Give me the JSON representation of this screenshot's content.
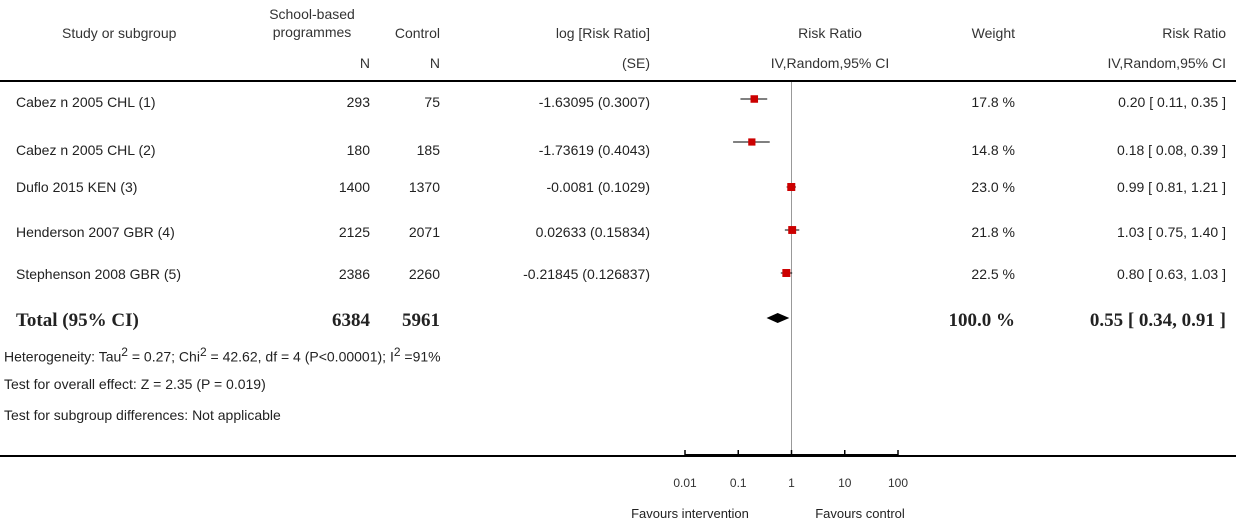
{
  "header": {
    "study": "Study or subgroup",
    "exp_line1": "School-based",
    "exp_line2": "programmes",
    "exp_n": "N",
    "control": "Control",
    "control_n": "N",
    "logrr": "log [Risk Ratio]",
    "logrr_se": "(SE)",
    "rr_plot": "Risk Ratio",
    "rr_plot_method": "IV,Random,95% CI",
    "weight": "Weight",
    "rr_text": "Risk Ratio",
    "rr_text_method": "IV,Random,95% CI"
  },
  "rows": [
    {
      "study": "Cabez  n 2005 CHL (1)",
      "exp_n": "293",
      "ctrl_n": "75",
      "logrr": "-1.63095 (0.3007)",
      "weight": "17.8 %",
      "rr": "0.20 [ 0.11, 0.35 ]"
    },
    {
      "study": "Cabez  n 2005 CHL (2)",
      "exp_n": "180",
      "ctrl_n": "185",
      "logrr": "-1.73619 (0.4043)",
      "weight": "14.8 %",
      "rr": "0.18 [ 0.08, 0.39 ]"
    },
    {
      "study": "Duflo 2015 KEN (3)",
      "exp_n": "1400",
      "ctrl_n": "1370",
      "logrr": "-0.0081 (0.1029)",
      "weight": "23.0 %",
      "rr": "0.99 [ 0.81, 1.21 ]"
    },
    {
      "study": "Henderson 2007 GBR (4)",
      "exp_n": "2125",
      "ctrl_n": "2071",
      "logrr": "0.02633 (0.15834)",
      "weight": "21.8 %",
      "rr": "1.03 [ 0.75, 1.40 ]"
    },
    {
      "study": "Stephenson 2008 GBR (5)",
      "exp_n": "2386",
      "ctrl_n": "2260",
      "logrr": "-0.21845 (0.126837)",
      "weight": "22.5 %",
      "rr": "0.80 [ 0.63, 1.03 ]"
    }
  ],
  "total": {
    "label": "Total (95% CI)",
    "exp_n": "6384",
    "ctrl_n": "5961",
    "weight": "100.0 %",
    "rr": "0.55 [ 0.34, 0.91 ]"
  },
  "notes": {
    "heterogeneity_a": "Heterogeneity: Tau",
    "heterogeneity_b": " = 0.27; Chi",
    "heterogeneity_c": " = 42.62, df = 4 (P<0.00001); I",
    "heterogeneity_d": " =91%",
    "sup": "2",
    "overall": "Test for overall effect: Z = 2.35 (P = 0.019)",
    "subgroup": "Test for subgroup differences: Not applicable"
  },
  "axis": {
    "ticks": [
      "0.01",
      "0.1",
      "1",
      "10",
      "100"
    ],
    "favours_left": "Favours intervention",
    "favours_right": "Favours control"
  },
  "chart_data": {
    "type": "forest",
    "scale": "log",
    "xlim": [
      0.01,
      100
    ],
    "null_line": 1,
    "colors": {
      "marker": "#cc0000",
      "line": "#000000",
      "null_line": "#999999"
    },
    "studies": [
      {
        "name": "Cabez  n 2005 CHL (1)",
        "rr": 0.2,
        "lo": 0.11,
        "hi": 0.35,
        "weight": 17.8
      },
      {
        "name": "Cabez  n 2005 CHL (2)",
        "rr": 0.18,
        "lo": 0.08,
        "hi": 0.39,
        "weight": 14.8
      },
      {
        "name": "Duflo 2015 KEN (3)",
        "rr": 0.99,
        "lo": 0.81,
        "hi": 1.21,
        "weight": 23.0
      },
      {
        "name": "Henderson 2007 GBR (4)",
        "rr": 1.03,
        "lo": 0.75,
        "hi": 1.4,
        "weight": 21.8
      },
      {
        "name": "Stephenson 2008 GBR (5)",
        "rr": 0.8,
        "lo": 0.63,
        "hi": 1.03,
        "weight": 22.5
      }
    ],
    "pooled": {
      "rr": 0.55,
      "lo": 0.34,
      "hi": 0.91
    }
  }
}
